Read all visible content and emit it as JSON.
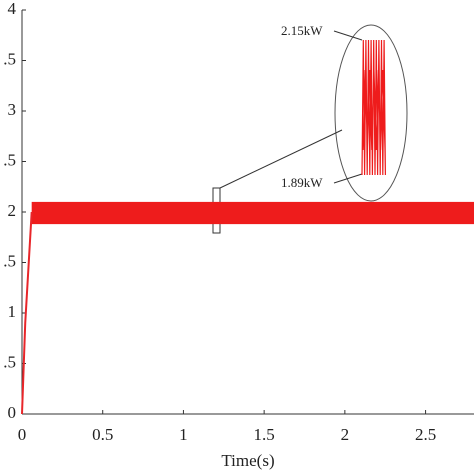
{
  "chart_data": {
    "type": "line",
    "x_label": "Time(s)",
    "x": [
      0,
      0.02,
      0.06
    ],
    "series": [
      {
        "color": "#e8262a",
        "values": [
          0,
          0.9,
          2.0
        ]
      }
    ],
    "band": {
      "x": [
        0.06,
        2.8
      ],
      "lower": 1.88,
      "upper": 2.1,
      "color": "#ee1c1c"
    },
    "annotations": [
      "2.15kW",
      "1.89kW"
    ],
    "xlim": [
      0,
      2.8
    ],
    "xticks": [
      0,
      0.5,
      1,
      1.5,
      2,
      2.5
    ],
    "ylim": [
      0,
      4
    ],
    "yticks": [
      0,
      {
        "value": 0.5,
        "label": ".5"
      },
      1,
      {
        "value": 1.5,
        "label": ".5"
      },
      2,
      {
        "value": 2.5,
        "label": ".5"
      },
      3,
      {
        "value": 3.5,
        "label": ".5"
      },
      4
    ]
  }
}
